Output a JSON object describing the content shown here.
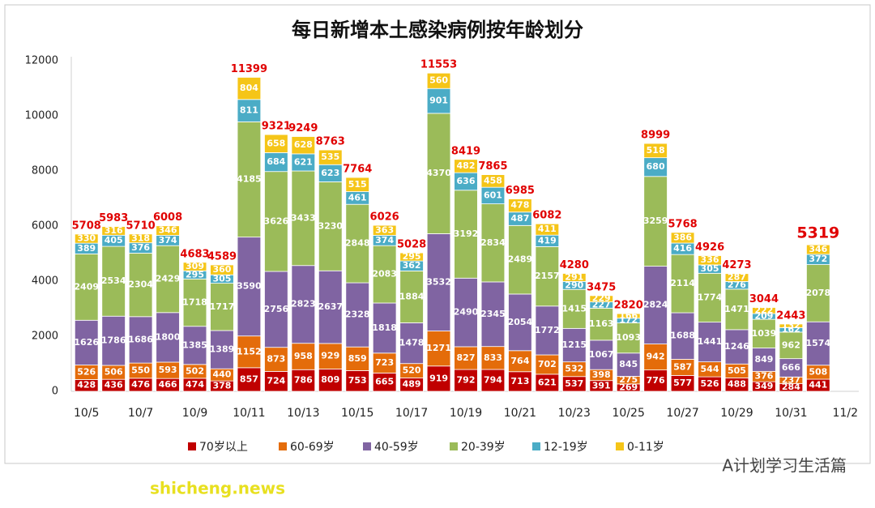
{
  "chart_data": {
    "type": "stacked_bar",
    "title": "每日新增本土感染病例按年龄划分",
    "categories": [
      "10/5",
      null,
      "10/7",
      null,
      "10/9",
      null,
      "10/11",
      null,
      "10/13",
      null,
      "10/15",
      null,
      "10/17",
      null,
      "10/19",
      null,
      "10/21",
      null,
      "10/23",
      null,
      "10/25",
      null,
      "10/27",
      null,
      "10/29",
      null,
      "10/31",
      null,
      "11/2"
    ],
    "series": [
      {
        "name": "70岁以上",
        "color": "#c00000",
        "values": [
          428,
          436,
          476,
          466,
          474,
          378,
          857,
          724,
          786,
          809,
          753,
          665,
          489,
          919,
          792,
          794,
          713,
          621,
          537,
          391,
          269,
          776,
          577,
          526,
          488,
          349,
          284,
          441,
          null
        ]
      },
      {
        "name": "60-69岁",
        "color": "#e46c0a",
        "values": [
          526,
          506,
          550,
          593,
          502,
          440,
          1152,
          873,
          958,
          929,
          859,
          723,
          520,
          1271,
          827,
          833,
          764,
          702,
          532,
          398,
          275,
          942,
          587,
          544,
          505,
          376,
          237,
          508,
          null
        ]
      },
      {
        "name": "40-59岁",
        "color": "#8064a2",
        "values": [
          1626,
          1786,
          1686,
          1800,
          1385,
          1389,
          3590,
          2756,
          2823,
          2637,
          2328,
          1818,
          1478,
          3532,
          2490,
          2345,
          2054,
          1772,
          1215,
          1067,
          845,
          2824,
          1688,
          1441,
          1246,
          849,
          666,
          1574,
          null
        ]
      },
      {
        "name": "20-39岁",
        "color": "#9bbb59",
        "values": [
          2409,
          2534,
          2304,
          2429,
          1718,
          1717,
          4185,
          3626,
          3433,
          3230,
          2848,
          2083,
          1884,
          4370,
          3192,
          2834,
          2489,
          2157,
          1415,
          1163,
          1093,
          3259,
          2114,
          1774,
          1471,
          1039,
          962,
          2078,
          null
        ]
      },
      {
        "name": "12-19岁",
        "color": "#4bacc6",
        "values": [
          389,
          405,
          376,
          374,
          295,
          305,
          811,
          684,
          621,
          623,
          461,
          374,
          362,
          901,
          636,
          601,
          487,
          419,
          290,
          227,
          172,
          680,
          416,
          305,
          276,
          209,
          162,
          372,
          null
        ]
      },
      {
        "name": "0-11岁",
        "color": "#f5c518",
        "values": [
          330,
          316,
          318,
          346,
          309,
          360,
          804,
          658,
          628,
          535,
          515,
          363,
          295,
          560,
          482,
          458,
          478,
          411,
          291,
          229,
          166,
          518,
          386,
          336,
          287,
          222,
          132,
          346,
          null
        ]
      }
    ],
    "totals": [
      5708,
      5983,
      5710,
      6008,
      4683,
      4589,
      11399,
      9321,
      9249,
      8763,
      7764,
      6026,
      5028,
      11553,
      8419,
      7865,
      6985,
      6082,
      4280,
      3475,
      2820,
      8999,
      5768,
      4926,
      4273,
      3044,
      2443,
      5319,
      null
    ],
    "ylim": [
      0,
      12000
    ],
    "yticks": [
      0,
      2000,
      4000,
      6000,
      8000,
      10000,
      12000
    ],
    "grid": false,
    "watermark": "shicheng.news",
    "brand": "A计划学习生活篇"
  }
}
